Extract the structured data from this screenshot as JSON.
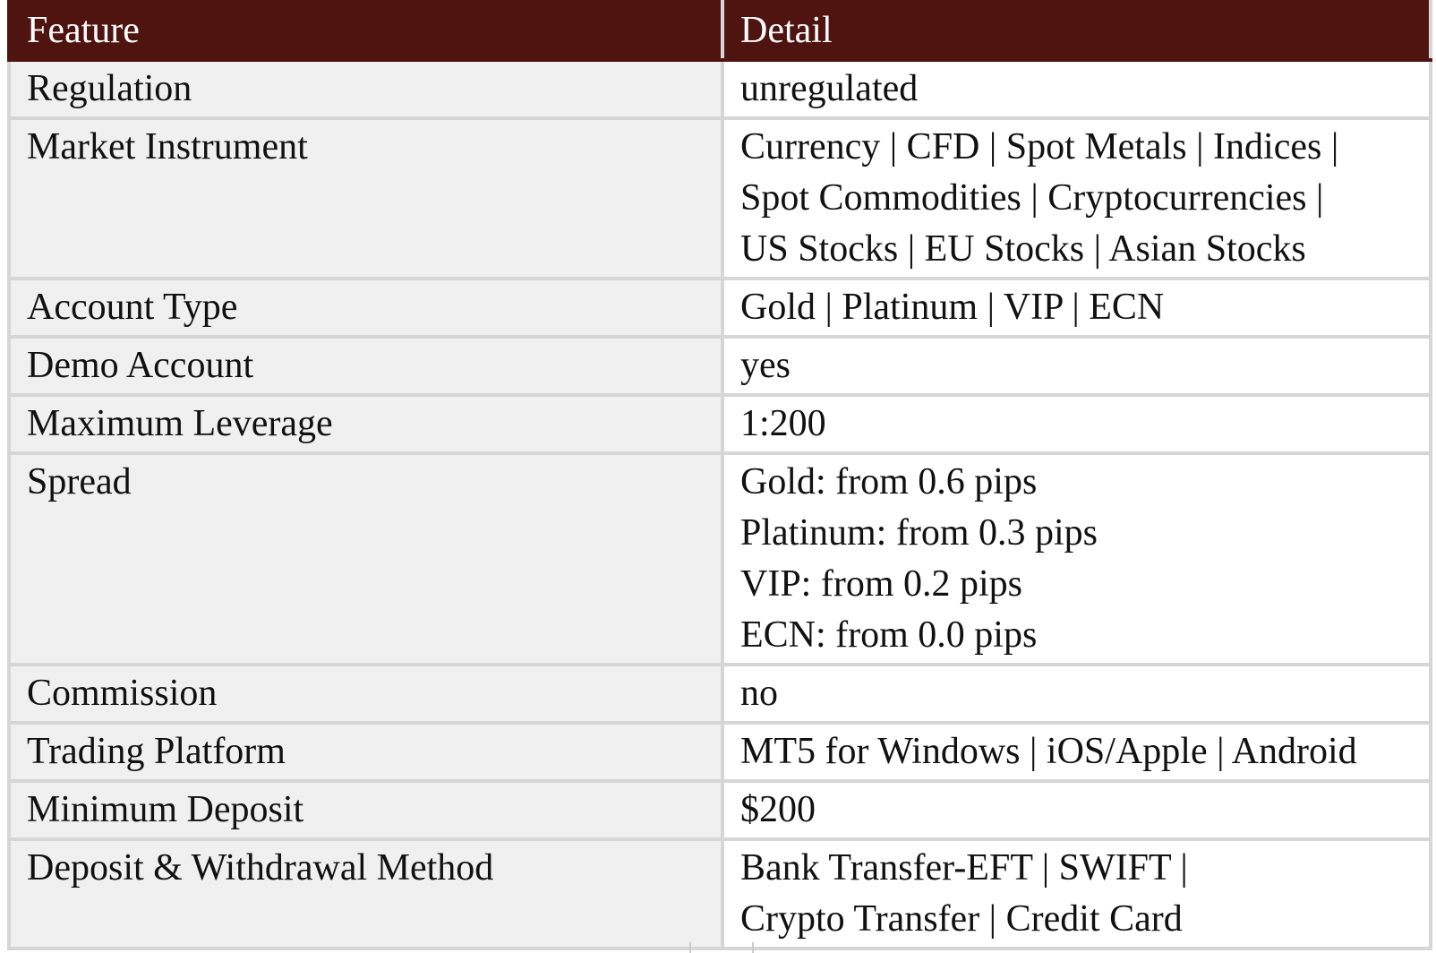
{
  "table": {
    "header": [
      "Feature",
      "Detail"
    ],
    "rows": [
      [
        "Regulation",
        [
          "unregulated"
        ]
      ],
      [
        "Market Instrument",
        [
          "Currency | CFD | Spot Metals | Indices |",
          "Spot Commodities | Cryptocurrencies |",
          "US Stocks | EU Stocks | Asian Stocks"
        ]
      ],
      [
        "Account Type",
        [
          "Gold | Platinum | VIP | ECN"
        ]
      ],
      [
        "Demo Account",
        [
          "yes"
        ]
      ],
      [
        "Maximum Leverage",
        [
          "1:200"
        ]
      ],
      [
        "Spread",
        [
          "Gold: from 0.6 pips",
          "Platinum: from 0.3 pips",
          "VIP: from 0.2 pips",
          "ECN: from 0.0 pips"
        ]
      ],
      [
        "Commission",
        [
          "no"
        ]
      ],
      [
        "Trading Platform",
        [
          "MT5 for Windows | iOS/Apple | Android"
        ]
      ],
      [
        "Minimum Deposit",
        [
          "$200"
        ]
      ],
      [
        "Deposit & Withdrawal Method",
        [
          "Bank Transfer-EFT | SWIFT |",
          "Crypto Transfer | Credit Card"
        ]
      ]
    ]
  }
}
